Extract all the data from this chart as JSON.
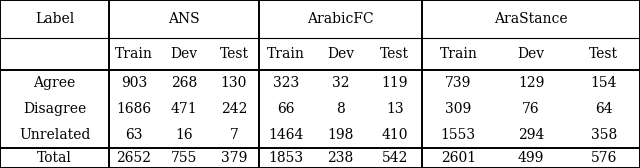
{
  "col_groups": [
    "ANS",
    "ArabicFC",
    "AraStance"
  ],
  "sub_cols": [
    "Train",
    "Dev",
    "Test"
  ],
  "row_labels": [
    "Agree",
    "Disagree",
    "Unrelated"
  ],
  "data_rows": [
    [
      "Agree",
      903,
      268,
      130,
      323,
      32,
      119,
      739,
      129,
      154
    ],
    [
      "Disagree",
      1686,
      471,
      242,
      66,
      8,
      13,
      309,
      76,
      64
    ],
    [
      "Unrelated",
      63,
      16,
      7,
      1464,
      198,
      410,
      1553,
      294,
      358
    ]
  ],
  "total_row": [
    "Total",
    2652,
    755,
    379,
    1853,
    238,
    542,
    2601,
    499,
    576
  ],
  "bg_color": "#ffffff",
  "vert_x": [
    0.0,
    1.09,
    2.59,
    4.22,
    6.4
  ],
  "line_y": [
    1.68,
    1.3,
    0.98,
    0.72,
    0.46,
    0.2,
    0.0
  ],
  "fontsize": 10.0,
  "lw_thick": 1.4,
  "lw_thin": 0.8
}
